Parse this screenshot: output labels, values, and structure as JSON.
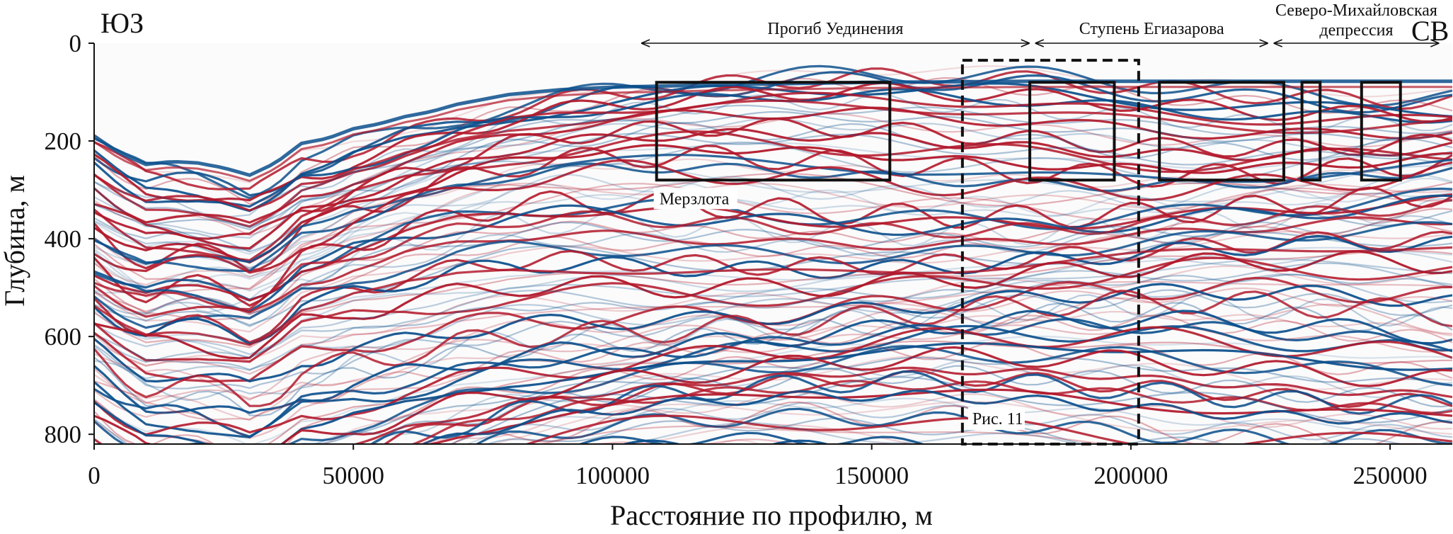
{
  "chart_data": {
    "type": "heatmap",
    "title": "",
    "xlabel": "Расстояние по профилю, м",
    "ylabel": "Глубина, м",
    "xlim": [
      0,
      262000
    ],
    "ylim": [
      0,
      820
    ],
    "y_inverted": true,
    "x_ticks": [
      0,
      50000,
      100000,
      150000,
      200000,
      250000
    ],
    "x_tick_labels": [
      "0",
      "50000",
      "100000",
      "150000",
      "200000",
      "250000"
    ],
    "y_ticks": [
      0,
      200,
      400,
      600,
      800
    ],
    "y_tick_labels": [
      "0",
      "200",
      "400",
      "600",
      "800"
    ],
    "colormap": [
      "#0b4f8c",
      "#ffffff",
      "#b2182b"
    ],
    "direction_labels": {
      "left": "ЮЗ",
      "right": "СВ"
    },
    "regions": [
      {
        "label": "Прогиб Уединения",
        "x_start": 105000,
        "x_end": 181000
      },
      {
        "label": "Ступень Егиазарова",
        "x_start": 181000,
        "x_end": 227000
      },
      {
        "label": "Северо-Михайловская депрессия",
        "x_start": 227000,
        "x_end": 260000
      }
    ],
    "permafrost_boxes": [
      {
        "x0": 108500,
        "x1": 153500,
        "y0": 80,
        "y1": 280
      },
      {
        "x0": 180500,
        "x1": 196800,
        "y0": 80,
        "y1": 280
      },
      {
        "x0": 205500,
        "x1": 229500,
        "y0": 80,
        "y1": 280
      },
      {
        "x0": 233000,
        "x1": 236500,
        "y0": 80,
        "y1": 280
      },
      {
        "x0": 244500,
        "x1": 252000,
        "y0": 80,
        "y1": 280
      }
    ],
    "permafrost_label": "Мерзлота",
    "figure_box": {
      "x0": 167500,
      "x1": 201500,
      "y0": 35,
      "y1": 820,
      "label": "Рис. 11"
    },
    "seafloor_depth": [
      [
        0,
        190
      ],
      [
        5000,
        225
      ],
      [
        10000,
        248
      ],
      [
        15000,
        242
      ],
      [
        20000,
        245
      ],
      [
        25000,
        255
      ],
      [
        30000,
        270
      ],
      [
        35000,
        245
      ],
      [
        40000,
        205
      ],
      [
        45000,
        195
      ],
      [
        50000,
        175
      ],
      [
        55000,
        165
      ],
      [
        60000,
        150
      ],
      [
        65000,
        140
      ],
      [
        70000,
        125
      ],
      [
        75000,
        115
      ],
      [
        80000,
        105
      ],
      [
        90000,
        95
      ],
      [
        100000,
        90
      ],
      [
        120000,
        85
      ],
      [
        150000,
        80
      ],
      [
        180000,
        78
      ],
      [
        220000,
        78
      ],
      [
        262000,
        78
      ]
    ]
  }
}
